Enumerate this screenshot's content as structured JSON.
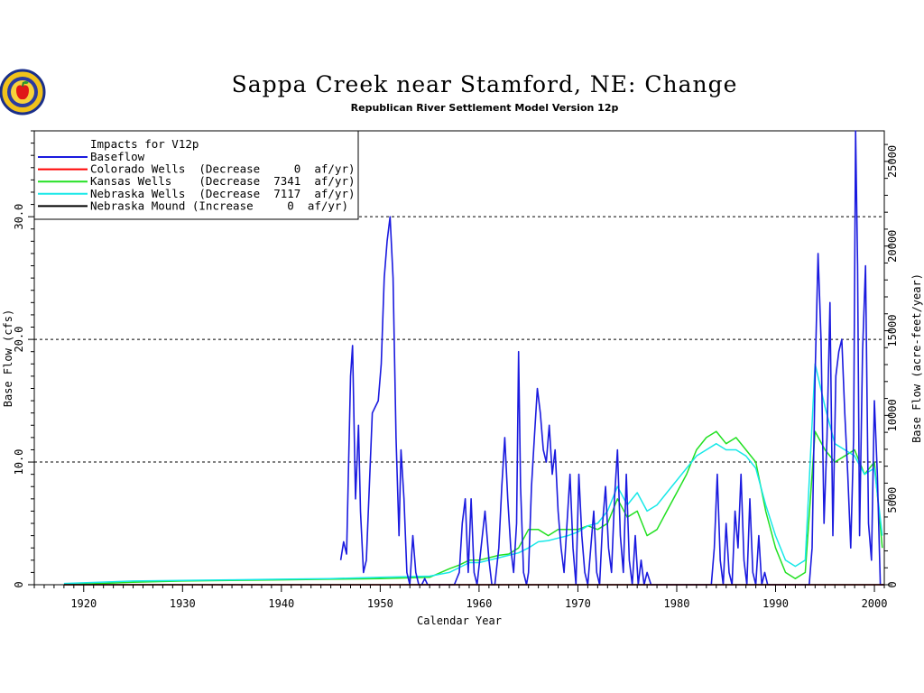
{
  "logo": {
    "icon": "apple-seal-logo"
  },
  "chart_data": {
    "type": "line",
    "title": "Sappa Creek near Stamford, NE: Change",
    "subtitle": "Republican River Settlement Model Version 12p",
    "xlabel": "Calendar Year",
    "ylabel_left": "Base Flow (cfs)",
    "ylabel_right": "Base Flow (acre-feet/year)",
    "xlim": [
      1915,
      2001
    ],
    "ylim": [
      0,
      37
    ],
    "x_ticks": [
      1920,
      1930,
      1940,
      1950,
      1960,
      1970,
      1980,
      1990,
      2000
    ],
    "x_tick_labels": [
      "1920",
      "1930",
      "1940",
      "1950",
      "1960",
      "1970",
      "1980",
      "1990",
      "2000"
    ],
    "y_ticks_left": [
      0,
      10,
      20,
      30
    ],
    "y_tick_labels_left": [
      "0",
      "10.0",
      "20.0",
      "30.0"
    ],
    "y_ticks_right_cfs": [
      0,
      6.9,
      13.8,
      20.7,
      27.6,
      34.5
    ],
    "y_tick_labels_right": [
      "0",
      "5000",
      "10000",
      "15000",
      "20000",
      "25000"
    ],
    "gridlines_y": [
      10,
      20,
      30
    ],
    "grid_style": "dashed",
    "legend": {
      "placement": "top-left",
      "header": "Impacts for V12p",
      "entries": [
        {
          "label": "Baseflow",
          "color": "#1a1adf"
        },
        {
          "label": "Colorado Wells  (Decrease     0  af/yr)",
          "color": "#ff0000"
        },
        {
          "label": "Kansas Wells    (Decrease  7341  af/yr)",
          "color": "#22e022"
        },
        {
          "label": "Nebraska Wells  (Decrease  7117  af/yr)",
          "color": "#18e8e8"
        },
        {
          "label": "Nebraska Mound (Increase     0  af/yr)",
          "color": "#000000"
        }
      ]
    },
    "series": [
      {
        "name": "Baseflow",
        "color": "#1a1adf",
        "x": [
          1946.0,
          1946.3,
          1946.6,
          1947.0,
          1947.2,
          1947.5,
          1947.8,
          1948.0,
          1948.3,
          1948.6,
          1948.9,
          1949.2,
          1949.5,
          1949.8,
          1950.1,
          1950.4,
          1950.7,
          1951.0,
          1951.3,
          1951.6,
          1951.9,
          1952.1,
          1952.4,
          1952.7,
          1953.0,
          1953.3,
          1953.6,
          1953.9,
          1954.2,
          1954.5,
          1954.8,
          1955.2,
          1955.6,
          1956.0,
          1956.5,
          1957.0,
          1957.5,
          1958.0,
          1958.3,
          1958.6,
          1958.9,
          1959.2,
          1959.5,
          1959.8,
          1960.2,
          1960.6,
          1961.0,
          1961.3,
          1961.6,
          1962.0,
          1962.3,
          1962.6,
          1962.9,
          1963.2,
          1963.5,
          1963.8,
          1964.0,
          1964.2,
          1964.5,
          1964.8,
          1965.0,
          1965.3,
          1965.6,
          1965.9,
          1966.2,
          1966.5,
          1966.8,
          1967.1,
          1967.4,
          1967.7,
          1968.0,
          1968.3,
          1968.6,
          1968.9,
          1969.2,
          1969.5,
          1969.8,
          1970.1,
          1970.4,
          1970.7,
          1971.0,
          1971.3,
          1971.6,
          1971.9,
          1972.2,
          1972.5,
          1972.8,
          1973.1,
          1973.4,
          1973.7,
          1974.0,
          1974.3,
          1974.6,
          1974.9,
          1975.2,
          1975.5,
          1975.8,
          1976.1,
          1976.4,
          1976.7,
          1977.0,
          1977.4,
          1977.8,
          1978.2,
          1978.6,
          1979.0,
          1979.5,
          1980.0,
          1981.0,
          1982.0,
          1983.0,
          1983.5,
          1983.8,
          1984.1,
          1984.4,
          1984.7,
          1985.0,
          1985.3,
          1985.6,
          1985.9,
          1986.2,
          1986.5,
          1986.8,
          1987.1,
          1987.4,
          1987.7,
          1988.0,
          1988.3,
          1988.6,
          1988.9,
          1989.2,
          1989.5,
          1990.0,
          1991.0,
          1992.0,
          1992.5,
          1992.8,
          1993.1,
          1993.4,
          1993.7,
          1994.0,
          1994.3,
          1994.6,
          1994.9,
          1995.2,
          1995.5,
          1995.8,
          1996.1,
          1996.4,
          1996.7,
          1997.0,
          1997.3,
          1997.6,
          1997.9,
          1998.1,
          1998.3,
          1998.5,
          1998.8,
          1999.1,
          1999.4,
          1999.7,
          2000.0,
          2000.3,
          2000.6,
          2000.9
        ],
        "y": [
          2,
          3.5,
          2.5,
          17,
          19.5,
          7,
          13,
          6,
          1,
          2,
          8,
          14,
          14.5,
          15,
          18,
          25,
          28,
          30,
          25,
          12,
          4,
          11,
          7,
          1,
          0,
          4,
          1,
          0,
          0,
          0.5,
          0,
          0,
          0,
          0,
          0,
          0,
          0,
          1,
          5,
          7,
          1,
          7,
          1,
          0,
          3,
          6,
          2,
          0,
          0,
          3,
          8,
          12,
          7,
          3,
          1,
          5,
          19,
          8,
          1,
          0,
          1,
          8,
          12,
          16,
          14,
          11,
          10,
          13,
          9,
          11,
          6,
          3,
          1,
          5,
          9,
          3,
          0,
          9,
          4,
          1,
          0,
          3,
          6,
          1,
          0,
          5,
          8,
          3,
          1,
          7,
          11,
          4,
          1,
          9,
          2,
          0,
          4,
          0,
          2,
          0,
          1,
          0,
          0,
          0,
          0,
          0,
          0,
          0,
          0,
          0,
          0,
          0,
          3,
          9,
          2,
          0,
          5,
          1,
          0,
          6,
          3,
          9,
          2,
          0,
          7,
          1,
          0,
          4,
          0,
          1,
          0,
          0,
          0,
          0,
          0,
          0,
          0,
          0,
          0,
          3,
          17,
          27,
          20,
          5,
          12,
          23,
          4,
          17,
          19,
          20,
          14,
          9,
          3,
          12,
          37,
          26,
          4,
          19,
          26,
          5,
          2,
          15,
          9,
          0,
          0
        ],
        "x_note": "1946-2000"
      },
      {
        "name": "Colorado Wells",
        "color": "#ff0000",
        "x": [
          1918,
          2001
        ],
        "y": [
          0,
          0
        ]
      },
      {
        "name": "Kansas Wells",
        "color": "#22e022",
        "x": [
          1918,
          1925,
          1930,
          1935,
          1940,
          1945,
          1950,
          1955,
          1957,
          1958,
          1959,
          1960,
          1961,
          1962,
          1963,
          1964,
          1965,
          1966,
          1967,
          1968,
          1969,
          1970,
          1971,
          1972,
          1973,
          1974,
          1975,
          1976,
          1977,
          1978,
          1979,
          1980,
          1981,
          1982,
          1983,
          1984,
          1985,
          1986,
          1987,
          1988,
          1989,
          1990,
          1991,
          1992,
          1993,
          1994,
          1995,
          1996,
          1997,
          1998,
          1999,
          2000,
          2000.8
        ],
        "y": [
          0,
          0.2,
          0.3,
          0.35,
          0.4,
          0.45,
          0.5,
          0.6,
          1.3,
          1.6,
          2.0,
          2.0,
          2.2,
          2.4,
          2.5,
          3.0,
          4.5,
          4.5,
          4.0,
          4.5,
          4.5,
          4.5,
          4.8,
          4.5,
          5.0,
          7.0,
          5.5,
          6.0,
          4.0,
          4.5,
          6.0,
          7.5,
          9.0,
          11.0,
          12.0,
          12.5,
          11.5,
          12.0,
          11.0,
          10.0,
          6.0,
          3.0,
          1.0,
          0.5,
          1.0,
          12.5,
          11.0,
          10.0,
          10.5,
          11.0,
          9.0,
          10.0,
          3.0
        ]
      },
      {
        "name": "Nebraska Wells",
        "color": "#18e8e8",
        "x": [
          1918,
          1925,
          1930,
          1935,
          1940,
          1945,
          1950,
          1955,
          1957,
          1958,
          1959,
          1960,
          1961,
          1962,
          1963,
          1964,
          1965,
          1966,
          1967,
          1968,
          1969,
          1970,
          1971,
          1972,
          1973,
          1974,
          1975,
          1976,
          1977,
          1978,
          1979,
          1980,
          1981,
          1982,
          1983,
          1984,
          1985,
          1986,
          1987,
          1988,
          1989,
          1990,
          1991,
          1992,
          1993,
          1994,
          1995,
          1996,
          1997,
          1998,
          1999,
          2000,
          2000.8
        ],
        "y": [
          0.1,
          0.3,
          0.35,
          0.4,
          0.45,
          0.5,
          0.6,
          0.7,
          1.0,
          1.4,
          1.8,
          1.8,
          2.0,
          2.2,
          2.4,
          2.6,
          3.0,
          3.5,
          3.6,
          3.8,
          4.0,
          4.3,
          4.8,
          5.0,
          6.0,
          8.0,
          6.5,
          7.5,
          6.0,
          6.5,
          7.5,
          8.5,
          9.5,
          10.5,
          11.0,
          11.5,
          11.0,
          11.0,
          10.5,
          9.5,
          6.5,
          4.0,
          2.0,
          1.5,
          2.0,
          18.0,
          14.5,
          11.5,
          11.0,
          10.5,
          9.0,
          9.5,
          4.0
        ]
      },
      {
        "name": "Nebraska Mound",
        "color": "#000000",
        "x": [
          1918,
          2001
        ],
        "y": [
          0,
          0
        ]
      }
    ]
  }
}
